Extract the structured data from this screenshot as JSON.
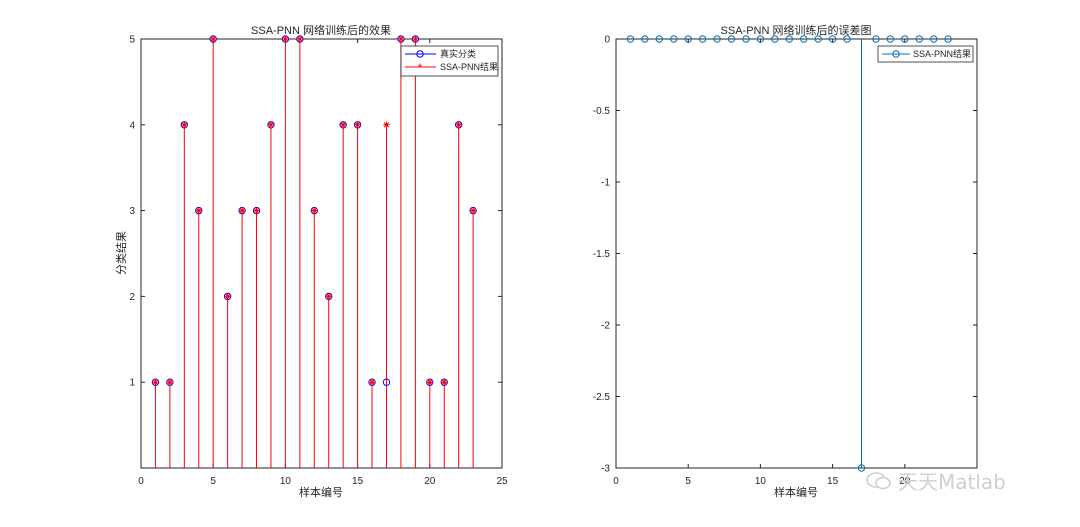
{
  "figure": {
    "watermark": "天天Matlab"
  },
  "chart_data": [
    {
      "type": "stem",
      "title": "SSA-PNN 网络训练后的效果",
      "xlabel": "样本编号",
      "ylabel": "分类结果",
      "xlim": [
        0,
        25
      ],
      "ylim": [
        0,
        5
      ],
      "xticks": [
        0,
        5,
        10,
        15,
        20,
        25
      ],
      "yticks": [
        1,
        2,
        3,
        4,
        5
      ],
      "grid": false,
      "legend_position": "top-right",
      "x": [
        1,
        2,
        3,
        4,
        5,
        6,
        7,
        8,
        9,
        10,
        11,
        12,
        13,
        14,
        15,
        16,
        17,
        18,
        19,
        20,
        21,
        22,
        23
      ],
      "series": [
        {
          "name": "真实分类",
          "marker": "circle",
          "color": "#0000ff",
          "values": [
            1,
            1,
            4,
            3,
            5,
            2,
            3,
            3,
            4,
            5,
            5,
            3,
            2,
            4,
            4,
            1,
            1,
            5,
            5,
            1,
            1,
            4,
            3
          ]
        },
        {
          "name": "SSA-PNN结果",
          "marker": "asterisk",
          "color": "#ff0000",
          "stem": true,
          "values": [
            1,
            1,
            4,
            3,
            5,
            2,
            3,
            3,
            4,
            5,
            5,
            3,
            2,
            4,
            4,
            1,
            4,
            5,
            5,
            1,
            1,
            4,
            3
          ]
        }
      ]
    },
    {
      "type": "stem",
      "title": "SSA-PNN 网络训练后的误差图",
      "xlabel": "样本编号",
      "ylabel": "",
      "xlim": [
        0,
        25
      ],
      "ylim": [
        -3,
        0
      ],
      "xticks": [
        0,
        5,
        10,
        15,
        20
      ],
      "yticks": [
        -3,
        -2.5,
        -2,
        -1.5,
        -1,
        -0.5,
        0
      ],
      "grid": false,
      "legend_position": "top-right",
      "x": [
        1,
        2,
        3,
        4,
        5,
        6,
        7,
        8,
        9,
        10,
        11,
        12,
        13,
        14,
        15,
        16,
        17,
        18,
        19,
        20,
        21,
        22,
        23
      ],
      "series": [
        {
          "name": "SSA-PNN结果",
          "marker": "circle",
          "color": "#0072bd",
          "stem": true,
          "values": [
            0,
            0,
            0,
            0,
            0,
            0,
            0,
            0,
            0,
            0,
            0,
            0,
            0,
            0,
            0,
            0,
            -3,
            0,
            0,
            0,
            0,
            0,
            0
          ]
        }
      ]
    }
  ]
}
